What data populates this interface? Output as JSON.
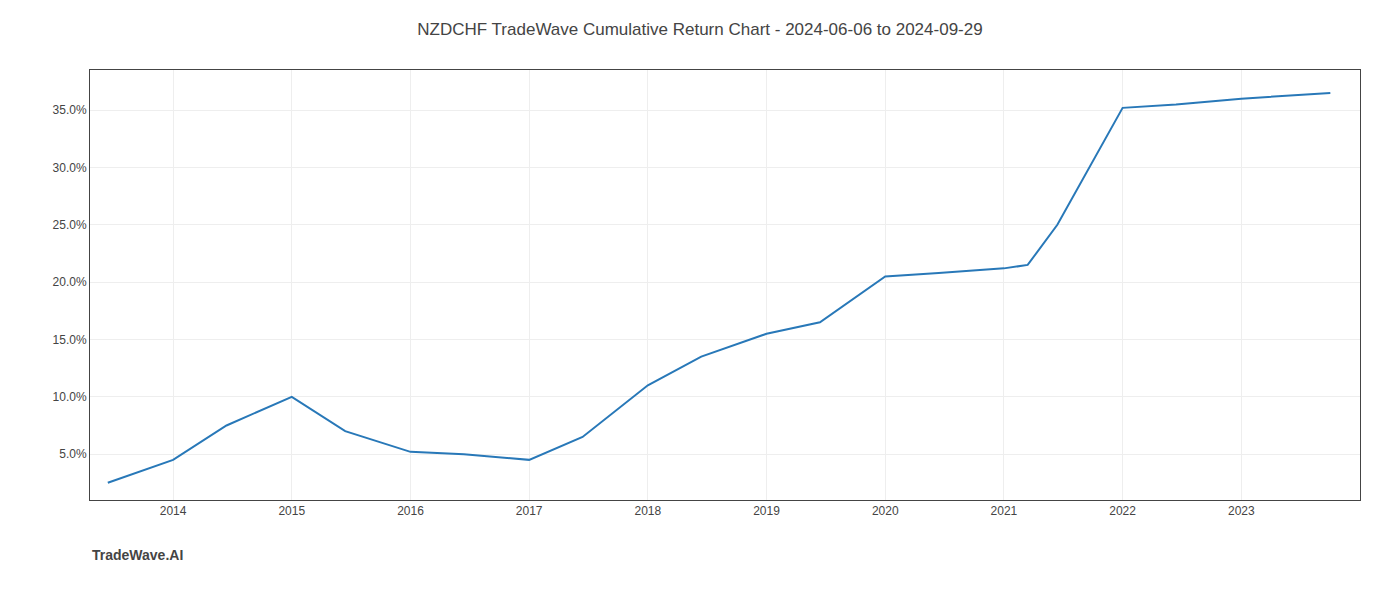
{
  "chart_data": {
    "type": "line",
    "title": "NZDCHF TradeWave Cumulative Return Chart - 2024-06-06 to 2024-09-29",
    "x": [
      2013.45,
      2014.0,
      2014.45,
      2015.0,
      2015.45,
      2016.0,
      2016.45,
      2017.0,
      2017.45,
      2018.0,
      2018.45,
      2019.0,
      2019.45,
      2020.0,
      2020.45,
      2021.0,
      2021.2,
      2021.45,
      2022.0,
      2022.45,
      2023.0,
      2023.75
    ],
    "values": [
      2.5,
      4.5,
      7.5,
      10.0,
      7.0,
      5.2,
      5.0,
      4.5,
      6.5,
      11.0,
      13.5,
      15.5,
      16.5,
      20.5,
      20.8,
      21.2,
      21.5,
      25.0,
      35.2,
      35.5,
      36.0,
      36.5
    ],
    "color": "#2878b8",
    "xlim": [
      2013.3,
      2024.0
    ],
    "ylim": [
      1.0,
      38.5
    ],
    "xticks": [
      2014,
      2015,
      2016,
      2017,
      2018,
      2019,
      2020,
      2021,
      2022,
      2023
    ],
    "yticks": [
      {
        "value": 5.0,
        "label": "5.0%"
      },
      {
        "value": 10.0,
        "label": "10.0%"
      },
      {
        "value": 15.0,
        "label": "15.0%"
      },
      {
        "value": 20.0,
        "label": "20.0%"
      },
      {
        "value": 25.0,
        "label": "25.0%"
      },
      {
        "value": 30.0,
        "label": "30.0%"
      },
      {
        "value": 35.0,
        "label": "35.0%"
      }
    ],
    "grid": true,
    "annotations": [
      "TradeWave.AI"
    ]
  }
}
